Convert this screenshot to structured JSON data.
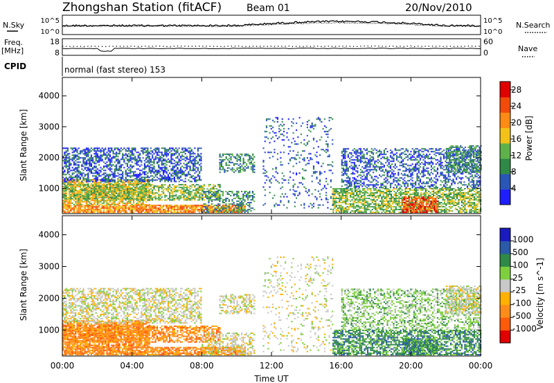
{
  "header": {
    "station_title": "Zhongshan Station (fitACF)",
    "beam": "Beam 01",
    "date": "20/Nov/2010",
    "cpid_label": "CPID",
    "cpid_text": "normal (fast stereo) 153"
  },
  "noise_panel": {
    "left_label": "N.Sky",
    "right_label": "N.Search",
    "left_ticks": [
      "10^5",
      "10^0"
    ],
    "right_ticks": [
      "10^5",
      "10^0"
    ]
  },
  "freq_panel": {
    "left_label_line1": "Freq.",
    "left_label_line2": "[MHz]",
    "right_label": "Nave",
    "left_ticks": [
      "18",
      "8"
    ],
    "right_ticks": [
      "60",
      "0"
    ]
  },
  "time_axis": {
    "label": "Time UT",
    "ticks": [
      "00:00",
      "04:00",
      "08:00",
      "12:00",
      "16:00",
      "20:00",
      "00:00"
    ]
  },
  "colors": {
    "power_scale": [
      "#1e1eff",
      "#2a56b8",
      "#2f8a48",
      "#5fb24a",
      "#f2c218",
      "#ff8a14",
      "#f24a0a",
      "#e00000"
    ],
    "velocity_scale": [
      "#e00000",
      "#ff5a0a",
      "#ff8c1a",
      "#ffb000",
      "#c8c8c8",
      "#7ecf3e",
      "#2f8a48",
      "#2a5aa8",
      "#1a1abf"
    ]
  },
  "chart_data": [
    {
      "type": "heatmap",
      "title": "Power",
      "xlabel": "Time UT",
      "ylabel": "Slant Range [km]",
      "xlim": [
        0,
        24
      ],
      "ylim": [
        180,
        4600
      ],
      "yticks": [
        "1000",
        "2000",
        "3000",
        "4000"
      ],
      "colorbar": {
        "label": "Power [dB]",
        "ticks": [
          "4",
          "8",
          "12",
          "16",
          "20",
          "24",
          "28"
        ],
        "range": [
          0,
          30
        ]
      }
    },
    {
      "type": "heatmap",
      "title": "Velocity",
      "xlabel": "Time UT",
      "ylabel": "Slant Range [km]",
      "xlim": [
        0,
        24
      ],
      "ylim": [
        180,
        4600
      ],
      "yticks": [
        "1000",
        "2000",
        "3000",
        "4000"
      ],
      "colorbar": {
        "label": "Velocity [m s^-1]",
        "ticks": [
          "1000",
          "500",
          "100",
          "25",
          "-25",
          "-100",
          "-500",
          "-1000"
        ]
      }
    }
  ]
}
